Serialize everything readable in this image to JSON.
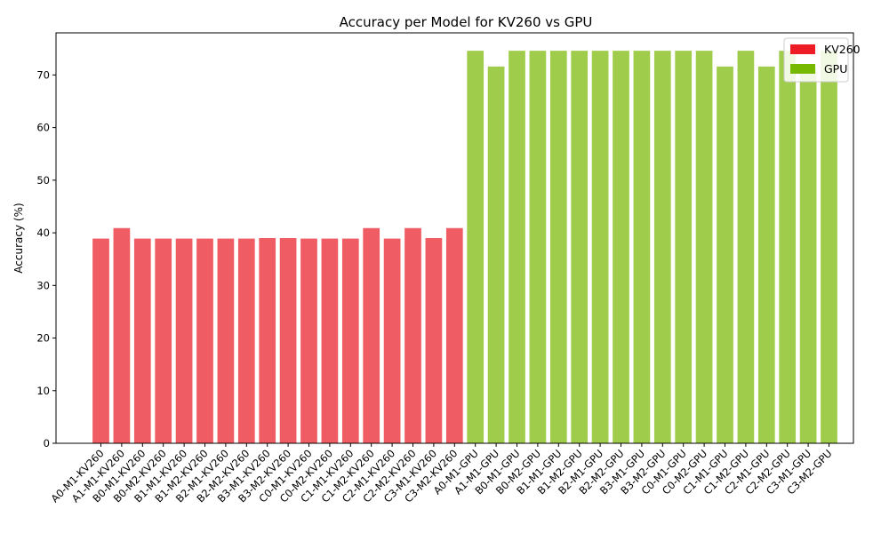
{
  "chart_data": {
    "type": "bar",
    "title": "Accuracy per Model for KV260 vs GPU",
    "ylabel": "Accuracy (%)",
    "xlabel": "",
    "ylim": [
      0,
      78
    ],
    "yticks": [
      0,
      10,
      20,
      30,
      40,
      50,
      60,
      70
    ],
    "grid": false,
    "legend_position": "top-right",
    "categories": [
      "A0-M1-KV260",
      "A1-M1-KV260",
      "B0-M1-KV260",
      "B0-M2-KV260",
      "B1-M1-KV260",
      "B1-M2-KV260",
      "B2-M1-KV260",
      "B2-M2-KV260",
      "B3-M1-KV260",
      "B3-M2-KV260",
      "C0-M1-KV260",
      "C0-M2-KV260",
      "C1-M1-KV260",
      "C1-M2-KV260",
      "C2-M1-KV260",
      "C2-M2-KV260",
      "C3-M1-KV260",
      "C3-M2-KV260",
      "A0-M1-GPU",
      "A1-M1-GPU",
      "B0-M1-GPU",
      "B0-M2-GPU",
      "B1-M1-GPU",
      "B1-M2-GPU",
      "B2-M1-GPU",
      "B2-M2-GPU",
      "B3-M1-GPU",
      "B3-M2-GPU",
      "C0-M1-GPU",
      "C0-M2-GPU",
      "C1-M1-GPU",
      "C1-M2-GPU",
      "C2-M1-GPU",
      "C2-M2-GPU",
      "C3-M1-GPU",
      "C3-M2-GPU"
    ],
    "values": [
      38.9,
      40.9,
      38.9,
      38.9,
      38.9,
      38.9,
      38.9,
      38.9,
      39.0,
      39.0,
      38.9,
      38.9,
      38.9,
      40.9,
      38.9,
      40.9,
      39.0,
      40.9,
      74.6,
      71.6,
      74.6,
      74.6,
      74.6,
      74.6,
      74.6,
      74.6,
      74.6,
      74.6,
      74.6,
      74.6,
      71.6,
      74.6,
      71.6,
      74.6,
      71.6,
      74.6
    ],
    "series_colors": [
      "#f05c64",
      "#9fcd4b",
      "#9fcd4b",
      "#9fcd4b",
      "#9fcd4b",
      "#9fcd4b",
      "#9fcd4b",
      "#9fcd4b",
      "#9fcd4b",
      "#9fcd4b",
      "#9fcd4b",
      "#9fcd4b",
      "#9fcd4b",
      "#9fcd4b",
      "#9fcd4b",
      "#9fcd4b",
      "#9fcd4b",
      "#9fcd4b"
    ],
    "legend": [
      {
        "label": "KV260",
        "color": "#ee1c24"
      },
      {
        "label": "GPU",
        "color": "#76b900"
      }
    ],
    "bar_colors": {
      "KV260": "#f05c64",
      "GPU": "#9fcd4b"
    }
  }
}
